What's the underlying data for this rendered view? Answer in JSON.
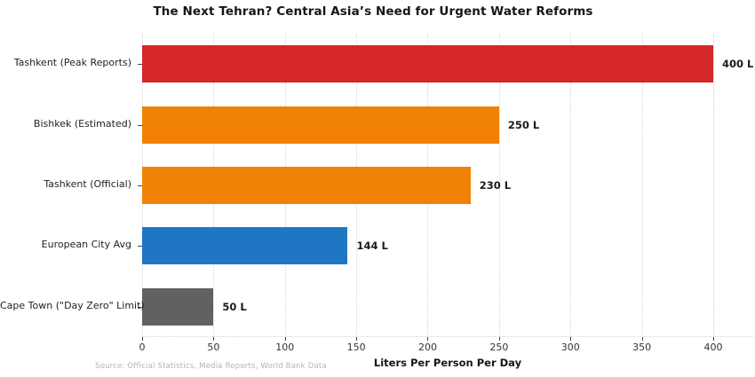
{
  "chart_data": {
    "type": "bar",
    "orientation": "horizontal",
    "title": "The Next Tehran? Central Asia’s Need for Urgent Water Reforms",
    "xlabel": "Liters Per Person Per Day",
    "source": "Source: Official Statistics, Media Reports, World Bank Data",
    "categories": [
      "Tashkent (Peak Reports)",
      "Bishkek (Estimated)",
      "Tashkent (Official)",
      "European City Avg",
      "Cape Town (\"Day Zero\" Limit)"
    ],
    "values": [
      400,
      250,
      230,
      144,
      50
    ],
    "value_labels": [
      "400 L",
      "250 L",
      "230 L",
      "144 L",
      "50 L"
    ],
    "bar_colors": [
      "#d62728",
      "#f28107",
      "#f28107",
      "#1f77c4",
      "#616161"
    ],
    "xticks": [
      0,
      50,
      100,
      150,
      200,
      250,
      300,
      350,
      400
    ],
    "xlim": [
      0,
      428
    ],
    "grid": "vertical-dotted",
    "legend": "none",
    "background": "#ffffff"
  }
}
